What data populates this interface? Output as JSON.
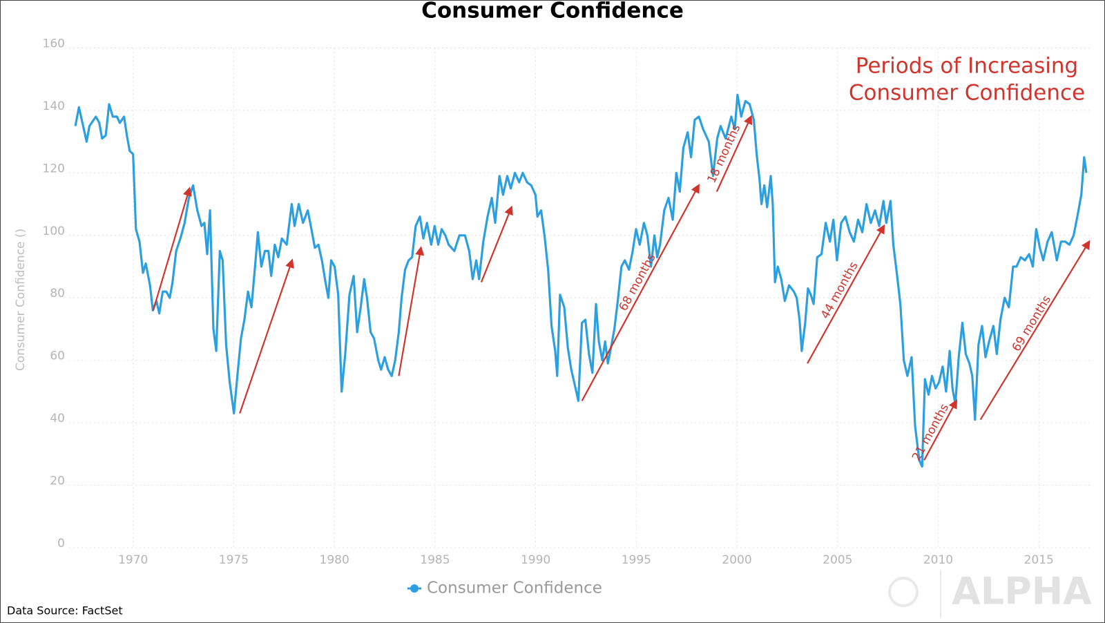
{
  "chart_data": {
    "type": "line",
    "title": "Consumer Confidence",
    "y_label": "Consumer Confidence ()",
    "x": [
      1967.13,
      1967.31,
      1967.52,
      1967.69,
      1967.83,
      1968.15,
      1968.32,
      1968.46,
      1968.64,
      1968.81,
      1968.99,
      1969.2,
      1969.34,
      1969.55,
      1969.69,
      1969.83,
      1970.0,
      1970.14,
      1970.32,
      1970.49,
      1970.63,
      1970.84,
      1970.98,
      1971.16,
      1971.3,
      1971.47,
      1971.65,
      1971.82,
      1971.96,
      1972.14,
      1972.35,
      1972.56,
      1972.77,
      1972.98,
      1973.19,
      1973.4,
      1973.54,
      1973.68,
      1973.82,
      1973.99,
      1974.13,
      1974.31,
      1974.45,
      1974.62,
      1974.8,
      1975.01,
      1975.18,
      1975.36,
      1975.53,
      1975.71,
      1975.88,
      1976.06,
      1976.2,
      1976.37,
      1976.55,
      1976.72,
      1976.86,
      1977.04,
      1977.21,
      1977.39,
      1977.63,
      1977.88,
      1978.02,
      1978.23,
      1978.44,
      1978.68,
      1978.86,
      1979.03,
      1979.21,
      1979.38,
      1979.56,
      1979.7,
      1979.84,
      1980.01,
      1980.19,
      1980.36,
      1980.54,
      1980.75,
      1980.96,
      1981.13,
      1981.31,
      1981.48,
      1981.62,
      1981.8,
      1981.97,
      1982.18,
      1982.32,
      1982.5,
      1982.67,
      1982.85,
      1983.02,
      1983.2,
      1983.34,
      1983.51,
      1983.69,
      1983.86,
      1984.04,
      1984.25,
      1984.42,
      1984.6,
      1984.81,
      1984.98,
      1985.16,
      1985.33,
      1985.51,
      1985.68,
      1985.96,
      1986.21,
      1986.49,
      1986.7,
      1986.87,
      1987.05,
      1987.19,
      1987.4,
      1987.61,
      1987.82,
      1987.99,
      1988.2,
      1988.38,
      1988.59,
      1988.76,
      1988.97,
      1989.18,
      1989.36,
      1989.57,
      1989.78,
      1989.99,
      1990.09,
      1990.27,
      1990.44,
      1990.62,
      1990.79,
      1990.97,
      1991.07,
      1991.21,
      1991.42,
      1991.6,
      1991.77,
      1991.95,
      1992.12,
      1992.3,
      1992.47,
      1992.65,
      1992.82,
      1993.0,
      1993.14,
      1993.31,
      1993.45,
      1993.59,
      1993.77,
      1993.91,
      1994.08,
      1994.26,
      1994.43,
      1994.64,
      1994.82,
      1994.99,
      1995.17,
      1995.38,
      1995.55,
      1995.73,
      1995.9,
      1996.04,
      1996.18,
      1996.39,
      1996.6,
      1996.81,
      1996.99,
      1997.16,
      1997.34,
      1997.55,
      1997.72,
      1997.9,
      1998.11,
      1998.32,
      1998.6,
      1998.81,
      1999.02,
      1999.19,
      1999.44,
      1999.72,
      1999.89,
      2000.03,
      2000.21,
      2000.42,
      2000.63,
      2000.84,
      2000.98,
      2001.12,
      2001.22,
      2001.36,
      2001.5,
      2001.68,
      2001.78,
      2001.89,
      2002.03,
      2002.2,
      2002.38,
      2002.59,
      2002.83,
      2002.97,
      2003.11,
      2003.22,
      2003.39,
      2003.53,
      2003.67,
      2003.81,
      2003.99,
      2004.2,
      2004.41,
      2004.62,
      2004.79,
      2004.97,
      2005.18,
      2005.39,
      2005.6,
      2005.81,
      2006.02,
      2006.23,
      2006.44,
      2006.65,
      2006.86,
      2007.07,
      2007.28,
      2007.42,
      2007.63,
      2007.77,
      2007.94,
      2008.12,
      2008.29,
      2008.47,
      2008.68,
      2008.85,
      2009.06,
      2009.2,
      2009.34,
      2009.52,
      2009.69,
      2009.87,
      2010.04,
      2010.22,
      2010.39,
      2010.57,
      2010.71,
      2010.85,
      2011.02,
      2011.2,
      2011.37,
      2011.55,
      2011.69,
      2011.83,
      2012.0,
      2012.18,
      2012.35,
      2012.53,
      2012.74,
      2012.91,
      2013.09,
      2013.3,
      2013.51,
      2013.72,
      2013.89,
      2014.1,
      2014.31,
      2014.52,
      2014.7,
      2014.87,
      2015.05,
      2015.22,
      2015.43,
      2015.64,
      2015.89,
      2016.1,
      2016.31,
      2016.52,
      2016.73,
      2016.94,
      2017.11,
      2017.25,
      2017.36
    ],
    "series": [
      {
        "name": "Consumer Confidence",
        "color": "#2b9fe0",
        "values": [
          135,
          141,
          135,
          130,
          135,
          138,
          136,
          131,
          132,
          142,
          138,
          138,
          136,
          138,
          132,
          127,
          126,
          102,
          98,
          88,
          91,
          84,
          76,
          79,
          75,
          82,
          82,
          80,
          85,
          95,
          99,
          104,
          112,
          116,
          108,
          103,
          104,
          94,
          108,
          70,
          63,
          95,
          92,
          65,
          53,
          43,
          55,
          67,
          73,
          82,
          77,
          90,
          101,
          90,
          95,
          95,
          87,
          97,
          93,
          99,
          97,
          110,
          103,
          110,
          104,
          108,
          102,
          96,
          97,
          92,
          85,
          80,
          92,
          90,
          81,
          50,
          62,
          81,
          87,
          69,
          77,
          86,
          80,
          69,
          67,
          60,
          57,
          61,
          57,
          55,
          60,
          69,
          80,
          89,
          92,
          93,
          103,
          106,
          99,
          104,
          97,
          103,
          97,
          102,
          100,
          97,
          95,
          100,
          100,
          95,
          86,
          92,
          86,
          98,
          106,
          112,
          104,
          119,
          113,
          119,
          115,
          120,
          117,
          120,
          117,
          116,
          113,
          106,
          108,
          100,
          89,
          71,
          63,
          55,
          81,
          77,
          64,
          57,
          52,
          47,
          72,
          73,
          62,
          56,
          78,
          66,
          60,
          66,
          59,
          65,
          70,
          79,
          90,
          92,
          89,
          95,
          102,
          97,
          104,
          100,
          90,
          100,
          93,
          97,
          108,
          112,
          105,
          120,
          114,
          128,
          133,
          125,
          137,
          138,
          134,
          130,
          119,
          131,
          135,
          131,
          138,
          134,
          145,
          138,
          143,
          142,
          137,
          126,
          118,
          110,
          116,
          109,
          119,
          110,
          85,
          90,
          86,
          79,
          84,
          82,
          80,
          73,
          63,
          72,
          83,
          81,
          78,
          93,
          94,
          104,
          98,
          105,
          92,
          104,
          106,
          101,
          98,
          105,
          101,
          110,
          104,
          108,
          103,
          111,
          104,
          111,
          97,
          88,
          78,
          60,
          55,
          61,
          39,
          28,
          26,
          54,
          49,
          55,
          51,
          53,
          58,
          50,
          63,
          51,
          46,
          61,
          72,
          62,
          59,
          55,
          41,
          65,
          71,
          61,
          66,
          71,
          62,
          73,
          80,
          77,
          90,
          90,
          93,
          92,
          94,
          90,
          102,
          96,
          92,
          98,
          101,
          92,
          98,
          98,
          97,
          100,
          107,
          113,
          125,
          120
        ]
      }
    ],
    "xlim": [
      1966.75,
      2017.6
    ],
    "ylim": [
      0,
      160
    ],
    "xticks": [
      1970,
      1975,
      1980,
      1985,
      1990,
      1995,
      2000,
      2005,
      2010,
      2015
    ],
    "yticks": [
      0,
      20,
      40,
      60,
      80,
      100,
      120,
      140,
      160
    ],
    "grid": true,
    "legend": "bottom",
    "annotation": [
      "Periods of Increasing",
      "Consumer Confidence"
    ],
    "arrow_color": "#d0342c",
    "arrows": [
      {
        "x": [
          1971.0,
          1972.8
        ],
        "y": [
          76,
          115
        ]
      },
      {
        "x": [
          1975.3,
          1977.9
        ],
        "y": [
          43,
          92
        ]
      },
      {
        "x": [
          1983.2,
          1984.3
        ],
        "y": [
          55,
          96
        ]
      },
      {
        "x": [
          1987.3,
          1988.8
        ],
        "y": [
          85,
          109
        ]
      },
      {
        "x": [
          1992.3,
          1998.1
        ],
        "y": [
          47,
          116
        ],
        "label": "68 months"
      },
      {
        "x": [
          1999.0,
          2000.7
        ],
        "y": [
          114,
          138
        ],
        "label": "18 months"
      },
      {
        "x": [
          2003.5,
          2007.3
        ],
        "y": [
          59,
          103
        ],
        "label": "44 months"
      },
      {
        "x": [
          2009.3,
          2010.9
        ],
        "y": [
          28,
          47
        ],
        "label": "21 months"
      },
      {
        "x": [
          2012.1,
          2017.5
        ],
        "y": [
          41,
          98
        ],
        "label": "69 months"
      }
    ]
  },
  "source": "Data Source: FactSet",
  "watermark": "ALPHA HAT"
}
